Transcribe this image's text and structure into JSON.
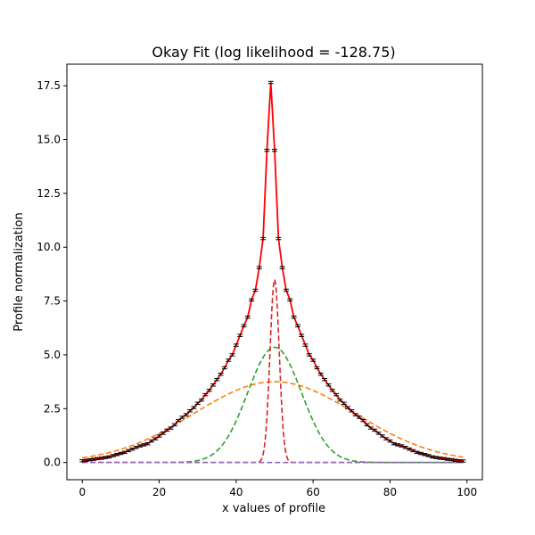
{
  "chart_data": {
    "type": "line",
    "title": "Okay Fit (log likelihood = -128.75)",
    "xlabel": "x values of profile",
    "ylabel": "Profile normalization",
    "xlim": [
      -4,
      104
    ],
    "ylim": [
      -0.8,
      18.5
    ],
    "xticks": [
      0,
      20,
      40,
      60,
      80,
      100
    ],
    "yticks": [
      0.0,
      2.5,
      5.0,
      7.5,
      10.0,
      12.5,
      15.0,
      17.5
    ],
    "grid": false,
    "legend": "none",
    "components": [
      {
        "kind": "gaussian",
        "amplitude": 3.75,
        "center": 50,
        "sigma": 21,
        "color": "#ff7f0e"
      },
      {
        "kind": "gaussian",
        "amplitude": 5.35,
        "center": 50,
        "sigma": 7.0,
        "color": "#2ca02c"
      },
      {
        "kind": "gaussian",
        "amplitude": 8.5,
        "center": 50,
        "sigma": 1.2,
        "color": "#d62728"
      },
      {
        "kind": "constant",
        "amplitude": 0.0,
        "color": "#9467bd"
      }
    ],
    "total_fit_color": "#ff0000",
    "data_points": {
      "x": [
        0,
        1,
        2,
        3,
        4,
        5,
        6,
        7,
        8,
        9,
        10,
        11,
        12,
        13,
        14,
        15,
        16,
        17,
        18,
        19,
        20,
        21,
        22,
        23,
        24,
        25,
        26,
        27,
        28,
        29,
        30,
        31,
        32,
        33,
        34,
        35,
        36,
        37,
        38,
        39,
        40,
        41,
        42,
        43,
        44,
        45,
        46,
        47,
        48,
        49,
        50,
        51,
        52,
        53,
        54,
        55,
        56,
        57,
        58,
        59,
        60,
        61,
        62,
        63,
        64,
        65,
        66,
        67,
        68,
        69,
        70,
        71,
        72,
        73,
        74,
        75,
        76,
        77,
        78,
        79,
        80,
        81,
        82,
        83,
        84,
        85,
        86,
        87,
        88,
        89,
        90,
        91,
        92,
        93,
        94,
        95,
        96,
        97,
        98,
        99
      ],
      "y": [
        0.08,
        0.1,
        0.13,
        0.15,
        0.18,
        0.2,
        0.23,
        0.26,
        0.32,
        0.37,
        0.42,
        0.47,
        0.55,
        0.62,
        0.7,
        0.77,
        0.82,
        0.87,
        1.0,
        1.1,
        1.23,
        1.36,
        1.5,
        1.6,
        1.75,
        1.95,
        2.1,
        2.22,
        2.4,
        2.55,
        2.75,
        2.9,
        3.15,
        3.35,
        3.6,
        3.85,
        4.1,
        4.4,
        4.75,
        5.0,
        5.45,
        5.9,
        6.35,
        6.75,
        7.55,
        8.0,
        9.05,
        10.4,
        14.5,
        17.65,
        14.5,
        10.4,
        9.05,
        8.0,
        7.55,
        6.75,
        6.35,
        5.9,
        5.45,
        5.0,
        4.75,
        4.4,
        4.1,
        3.85,
        3.6,
        3.35,
        3.15,
        2.9,
        2.75,
        2.55,
        2.4,
        2.22,
        2.1,
        1.95,
        1.75,
        1.6,
        1.5,
        1.36,
        1.23,
        1.1,
        1.0,
        0.87,
        0.82,
        0.77,
        0.7,
        0.62,
        0.55,
        0.47,
        0.42,
        0.37,
        0.32,
        0.26,
        0.23,
        0.2,
        0.18,
        0.15,
        0.13,
        0.1,
        0.08,
        0.07
      ],
      "error": 0.05,
      "color": "#000000"
    }
  }
}
